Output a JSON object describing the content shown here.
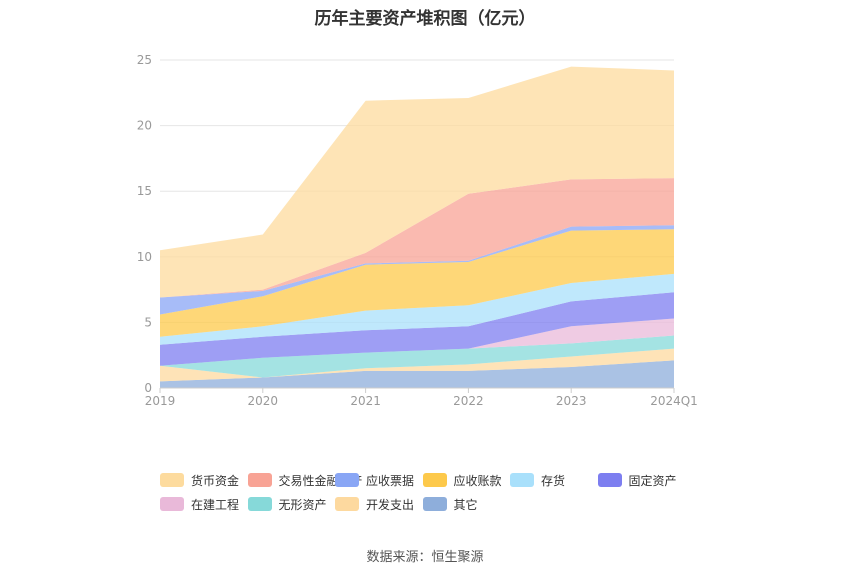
{
  "title": "历年主要资产堆积图（亿元）",
  "source": "数据来源：恒生聚源",
  "chart_data": {
    "type": "area",
    "stacked": true,
    "categories": [
      "2019",
      "2020",
      "2021",
      "2022",
      "2023",
      "2024Q1"
    ],
    "ylim": [
      0,
      25
    ],
    "yticks": [
      0,
      5,
      10,
      15,
      20,
      25
    ],
    "grid": true,
    "legend_position": "bottom",
    "series": [
      {
        "name": "其它",
        "color": "#8eaedb",
        "values": [
          0.5,
          0.8,
          1.3,
          1.3,
          1.6,
          2.1
        ]
      },
      {
        "name": "开发支出",
        "color": "#fdd99f",
        "values": [
          1.2,
          0.0,
          0.2,
          0.5,
          0.8,
          0.9
        ]
      },
      {
        "name": "无形资产",
        "color": "#86d9d9",
        "values": [
          0.0,
          1.5,
          1.2,
          1.2,
          1.0,
          1.0
        ]
      },
      {
        "name": "在建工程",
        "color": "#e9b9d9",
        "values": [
          0.0,
          0.0,
          0.0,
          0.0,
          1.3,
          1.3
        ]
      },
      {
        "name": "固定资产",
        "color": "#7d7ef0",
        "values": [
          1.6,
          1.6,
          1.7,
          1.7,
          1.9,
          2.0
        ]
      },
      {
        "name": "存货",
        "color": "#a9e0fb",
        "values": [
          0.6,
          0.8,
          1.5,
          1.6,
          1.4,
          1.4
        ]
      },
      {
        "name": "应收账款",
        "color": "#fdc94b",
        "values": [
          1.7,
          2.3,
          3.5,
          3.3,
          4.0,
          3.4
        ]
      },
      {
        "name": "应收票据",
        "color": "#89a6f5",
        "values": [
          1.3,
          0.4,
          0.1,
          0.1,
          0.3,
          0.3
        ]
      },
      {
        "name": "交易性金融资产",
        "color": "#f8a395",
        "values": [
          0.0,
          0.1,
          0.8,
          5.1,
          3.6,
          3.6
        ]
      },
      {
        "name": "货币资金",
        "color": "#fddb9e",
        "values": [
          3.6,
          4.2,
          11.6,
          7.3,
          8.6,
          8.2
        ]
      }
    ]
  }
}
